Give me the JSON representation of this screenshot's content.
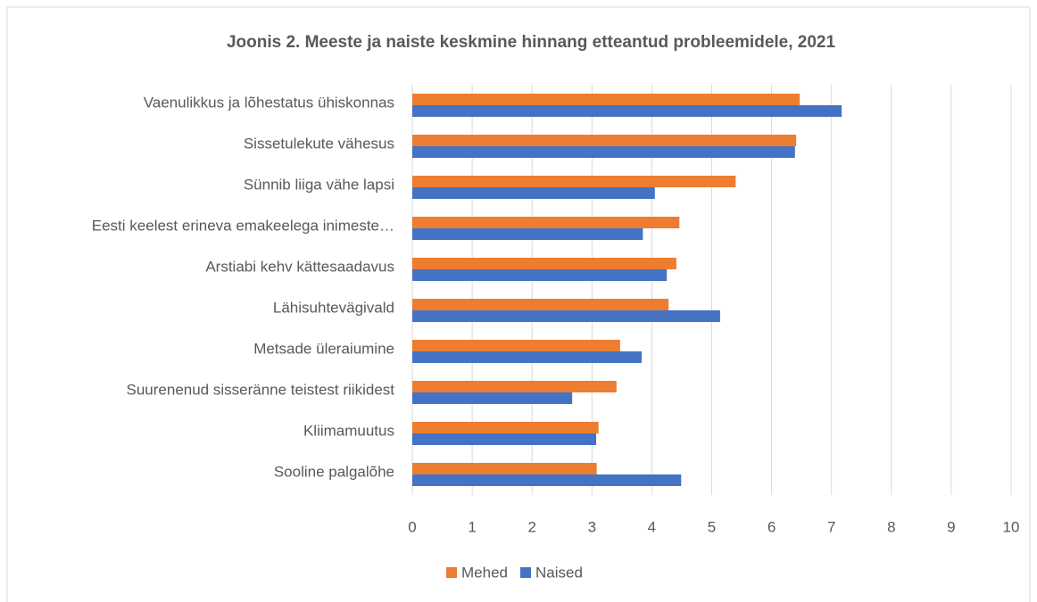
{
  "chart_data": {
    "type": "hbar",
    "title": "Joonis 2. Meeste ja naiste keskmine hinnang etteantud probleemidele, 2021",
    "categories": [
      "Vaenulikkus ja lõhestatus ühiskonnas",
      "Sissetulekute vähesus",
      "Sünnib liiga vähe lapsi",
      "Eesti keelest erineva emakeelega inimeste…",
      "Arstiabi kehv kättesaadavus",
      "Lähisuhtevägivald",
      "Metsade üleraiumine",
      "Suurenenud sisseränne teistest riikidest",
      "Kliimamuutus",
      "Sooline palgalõhe"
    ],
    "series": [
      {
        "name": "Mehed",
        "color": "#ed7d31",
        "values": [
          6.47,
          6.41,
          5.4,
          4.46,
          4.41,
          4.28,
          3.47,
          3.41,
          3.11,
          3.08
        ]
      },
      {
        "name": "Naised",
        "color": "#4472c4",
        "values": [
          7.17,
          6.39,
          4.05,
          3.85,
          4.25,
          5.14,
          3.83,
          2.67,
          3.07,
          4.49
        ]
      }
    ],
    "xlim": [
      0,
      10
    ],
    "xticks": [
      0,
      1,
      2,
      3,
      4,
      5,
      6,
      7,
      8,
      9,
      10
    ],
    "grid": true,
    "legend": "bottom"
  }
}
